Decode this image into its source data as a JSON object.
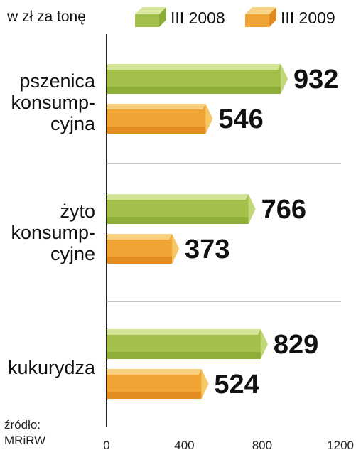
{
  "chart_data": {
    "type": "bar",
    "orientation": "horizontal",
    "unit_label": "w zł za tonę",
    "categories": [
      [
        "pszenica",
        "konsump-",
        "cyjna"
      ],
      [
        "żyto",
        "konsump-",
        "cyjne"
      ],
      [
        "kukurydza"
      ]
    ],
    "series": [
      {
        "name": "III 2008",
        "values": [
          932,
          766,
          829
        ],
        "color": "#a3c14a",
        "top_color": "#d8e89e",
        "front_color": "#c2d878",
        "shade_color": "#8aab35"
      },
      {
        "name": "III 2009",
        "values": [
          546,
          373,
          524
        ],
        "color": "#f0a433",
        "top_color": "#f7d487",
        "front_color": "#f5c766",
        "shade_color": "#e08a1e"
      }
    ],
    "xlim": [
      0,
      1200
    ],
    "ticks": [
      0,
      400,
      800,
      1200
    ],
    "grid": true,
    "legend_position": "top",
    "source": [
      "źródło:",
      "MRiRW"
    ]
  }
}
